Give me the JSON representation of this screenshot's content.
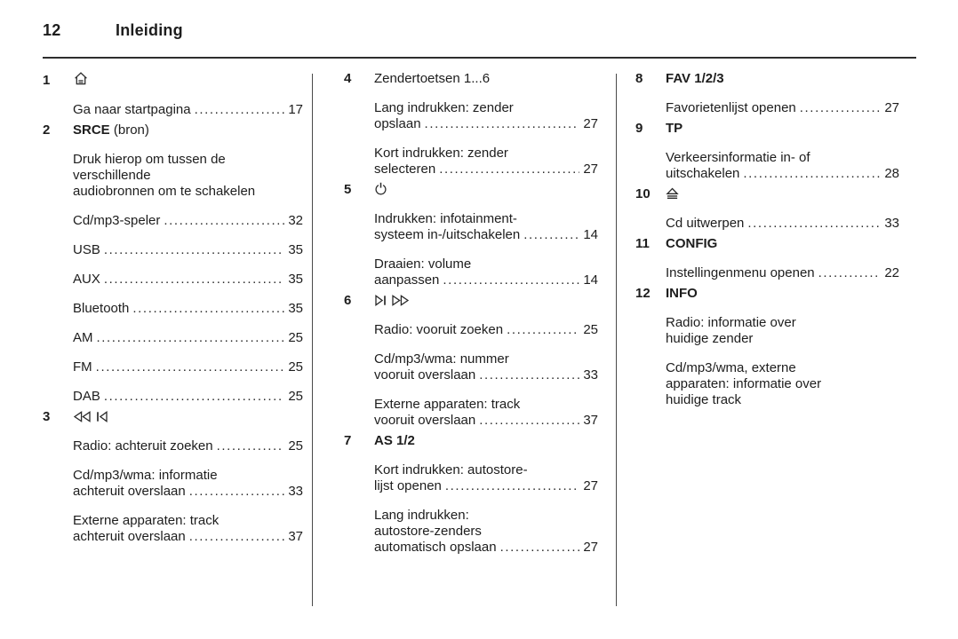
{
  "page": {
    "number": "12",
    "title": "Inleiding"
  },
  "colors": {
    "text": "#1d1d1d",
    "header_rule": "#2e2e2e",
    "column_divider": "#4a4a4a",
    "background": "#ffffff"
  },
  "legend": {
    "columns": [
      {
        "items": [
          {
            "num": "1",
            "head": {
              "icons": [
                "home-icon"
              ]
            },
            "entries": [
              {
                "lines": [
                  "Ga naar startpagina"
                ],
                "page": "17"
              }
            ]
          },
          {
            "num": "2",
            "head": {
              "bold": "SRCE",
              "rest": " (bron)"
            },
            "entries": [
              {
                "lines": [
                  "Druk hierop om tussen de",
                  "verschillende",
                  "audiobronnen om te schakelen"
                ]
              },
              {
                "lines": [
                  "Cd/mp3-speler"
                ],
                "page": "32"
              },
              {
                "lines": [
                  "USB"
                ],
                "page": "35"
              },
              {
                "lines": [
                  "AUX"
                ],
                "page": "35"
              },
              {
                "lines": [
                  "Bluetooth"
                ],
                "page": "35"
              },
              {
                "lines": [
                  "AM"
                ],
                "page": "25"
              },
              {
                "lines": [
                  "FM"
                ],
                "page": "25"
              },
              {
                "lines": [
                  "DAB"
                ],
                "page": "25"
              }
            ]
          },
          {
            "num": "3",
            "head": {
              "icons": [
                "rewind-icon",
                "skip-back-icon"
              ]
            },
            "entries": [
              {
                "lines": [
                  "Radio: achteruit zoeken"
                ],
                "page": "25"
              },
              {
                "lines": [
                  "Cd/mp3/wma: informatie",
                  "achteruit overslaan"
                ],
                "page": "33"
              },
              {
                "lines": [
                  "Externe apparaten: track",
                  "achteruit overslaan"
                ],
                "page": "37"
              }
            ]
          }
        ]
      },
      {
        "items": [
          {
            "num": "4",
            "head": {
              "rest": "Zendertoetsen  1...6"
            },
            "entries": [
              {
                "lines": [
                  "Lang indrukken: zender",
                  "opslaan"
                ],
                "page": "27"
              },
              {
                "lines": [
                  "Kort indrukken: zender",
                  "selecteren"
                ],
                "page": "27"
              }
            ]
          },
          {
            "num": "5",
            "head": {
              "icons": [
                "power-icon"
              ]
            },
            "entries": [
              {
                "lines": [
                  "Indrukken: infotainment-",
                  "systeem in-/uitschakelen"
                ],
                "page": "14"
              },
              {
                "lines": [
                  "Draaien: volume",
                  "aanpassen"
                ],
                "page": "14"
              }
            ]
          },
          {
            "num": "6",
            "head": {
              "icons": [
                "skip-forward-icon",
                "fast-forward-icon"
              ]
            },
            "entries": [
              {
                "lines": [
                  "Radio: vooruit zoeken"
                ],
                "page": "25"
              },
              {
                "lines": [
                  "Cd/mp3/wma: nummer",
                  "vooruit overslaan"
                ],
                "page": "33"
              },
              {
                "lines": [
                  "Externe apparaten: track",
                  "vooruit overslaan"
                ],
                "page": "37"
              }
            ]
          },
          {
            "num": "7",
            "head": {
              "bold": "AS 1/2"
            },
            "entries": [
              {
                "lines": [
                  "Kort indrukken: autostore-",
                  "lijst openen"
                ],
                "page": "27"
              },
              {
                "lines": [
                  "Lang indrukken:",
                  "autostore-zenders",
                  "automatisch opslaan"
                ],
                "page": "27"
              }
            ]
          }
        ]
      },
      {
        "items": [
          {
            "num": "8",
            "head": {
              "bold": "FAV 1/2/3"
            },
            "entries": [
              {
                "lines": [
                  "Favorietenlijst openen"
                ],
                "page": "27"
              }
            ]
          },
          {
            "num": "9",
            "head": {
              "bold": "TP"
            },
            "entries": [
              {
                "lines": [
                  "Verkeersinformatie in- of",
                  "uitschakelen"
                ],
                "page": "28"
              }
            ]
          },
          {
            "num": "10",
            "head": {
              "icons": [
                "eject-icon"
              ]
            },
            "entries": [
              {
                "lines": [
                  "Cd uitwerpen"
                ],
                "page": "33"
              }
            ]
          },
          {
            "num": "11",
            "head": {
              "bold": "CONFIG"
            },
            "entries": [
              {
                "lines": [
                  "Instellingenmenu openen"
                ],
                "page": "22"
              }
            ]
          },
          {
            "num": "12",
            "head": {
              "bold": "INFO"
            },
            "entries": [
              {
                "lines": [
                  "Radio: informatie over",
                  "huidige zender"
                ]
              },
              {
                "lines": [
                  "Cd/mp3/wma, externe",
                  "apparaten: informatie over",
                  "huidige track"
                ]
              }
            ]
          }
        ]
      }
    ]
  }
}
